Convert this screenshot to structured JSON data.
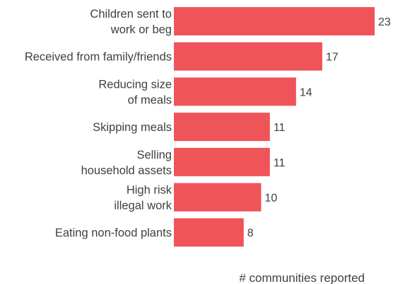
{
  "chart_data": {
    "type": "bar",
    "orientation": "horizontal",
    "categories": [
      [
        "Children sent to",
        "work or beg"
      ],
      [
        "Received from family/friends"
      ],
      [
        "Reducing size",
        "of meals"
      ],
      [
        "Skipping meals"
      ],
      [
        "Selling",
        "household assets"
      ],
      [
        "High risk",
        "illegal work"
      ],
      [
        "Eating non-food plants"
      ]
    ],
    "values": [
      23,
      17,
      14,
      11,
      11,
      10,
      8
    ],
    "xlabel": "# communities reported",
    "xlim": [
      0,
      23
    ],
    "grid": false,
    "colors": {
      "bar": "#ef5459",
      "text": "#404040"
    }
  }
}
